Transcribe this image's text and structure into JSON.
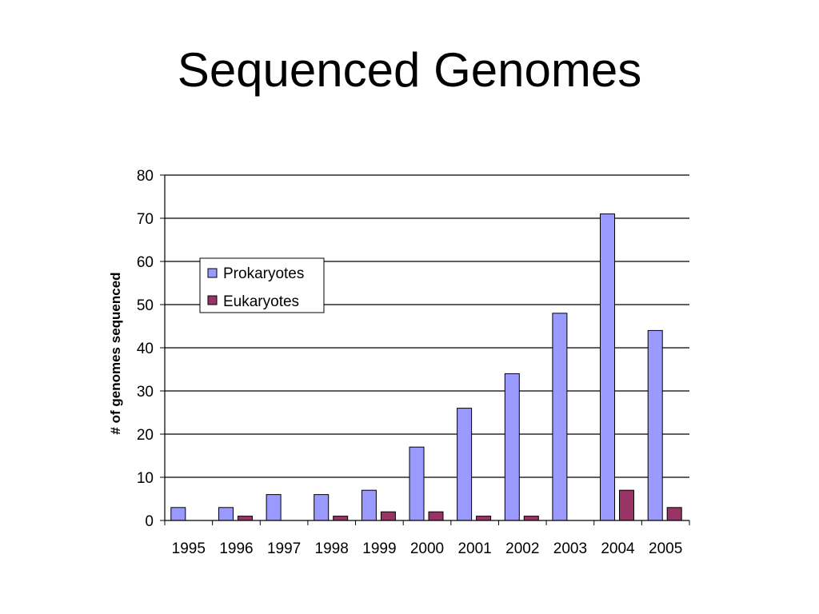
{
  "slide": {
    "title": "Sequenced Genomes"
  },
  "colors": {
    "prokaryotes": "#9999ff",
    "eukaryotes": "#993366",
    "bar_stroke": "#000000",
    "grid": "#000000"
  },
  "chart_data": {
    "type": "bar",
    "categories": [
      "1995",
      "1996",
      "1997",
      "1998",
      "1999",
      "2000",
      "2001",
      "2002",
      "2003",
      "2004",
      "2005"
    ],
    "series": [
      {
        "name": "Prokaryotes",
        "values": [
          3,
          3,
          6,
          6,
          7,
          17,
          26,
          34,
          48,
          71,
          44
        ]
      },
      {
        "name": "Eukaryotes",
        "values": [
          0,
          1,
          0,
          1,
          2,
          2,
          1,
          1,
          0,
          7,
          3
        ]
      }
    ],
    "title": "",
    "xlabel": "",
    "ylabel": "# of genomes sequenced",
    "ylim": [
      0,
      80
    ],
    "yticks": [
      0,
      10,
      20,
      30,
      40,
      50,
      60,
      70,
      80
    ],
    "grid": true,
    "legend_position": "upper-left"
  }
}
